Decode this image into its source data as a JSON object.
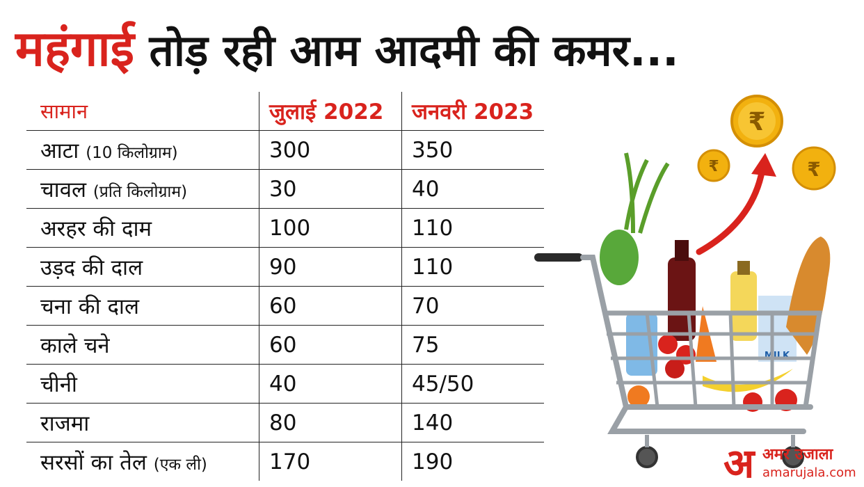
{
  "title": {
    "highlight": "महंगाई",
    "rest": "तोड़ रही आम आदमी की कमर..."
  },
  "table": {
    "headers": [
      "सामान",
      "जुलाई 2022",
      "जनवरी 2023"
    ],
    "rows": [
      {
        "item": "आटा",
        "unit": "(10 किलोग्राम)",
        "jul2022": "300",
        "jan2023": "350"
      },
      {
        "item": "चावल",
        "unit": "(प्रति किलोग्राम)",
        "jul2022": "30",
        "jan2023": "40"
      },
      {
        "item": "अरहर की दाम",
        "unit": "",
        "jul2022": "100",
        "jan2023": "110"
      },
      {
        "item": "उड़द की दाल",
        "unit": "",
        "jul2022": "90",
        "jan2023": "110"
      },
      {
        "item": "चना की दाल",
        "unit": "",
        "jul2022": "60",
        "jan2023": "70"
      },
      {
        "item": "काले चने",
        "unit": "",
        "jul2022": "60",
        "jan2023": "75"
      },
      {
        "item": "चीनी",
        "unit": "",
        "jul2022": "40",
        "jan2023": "45/50"
      },
      {
        "item": "राजमा",
        "unit": "",
        "jul2022": "80",
        "jan2023": "140"
      },
      {
        "item": "सरसों का तेल",
        "unit": "(एक ली)",
        "jul2022": "170",
        "jan2023": "190"
      }
    ]
  },
  "illustration": {
    "coin_symbol": "₹",
    "milk_label": "MILK",
    "icons": [
      "shopping-cart-icon",
      "rupee-coin-icon",
      "up-arrow-icon"
    ],
    "colors": {
      "accent_red": "#d9231d",
      "coin_gold": "#f2b10f",
      "cart_gray": "#9aa0a6"
    }
  },
  "logo": {
    "mark": "अ",
    "name": "अमर उजाला",
    "site": "amarujala.com"
  }
}
